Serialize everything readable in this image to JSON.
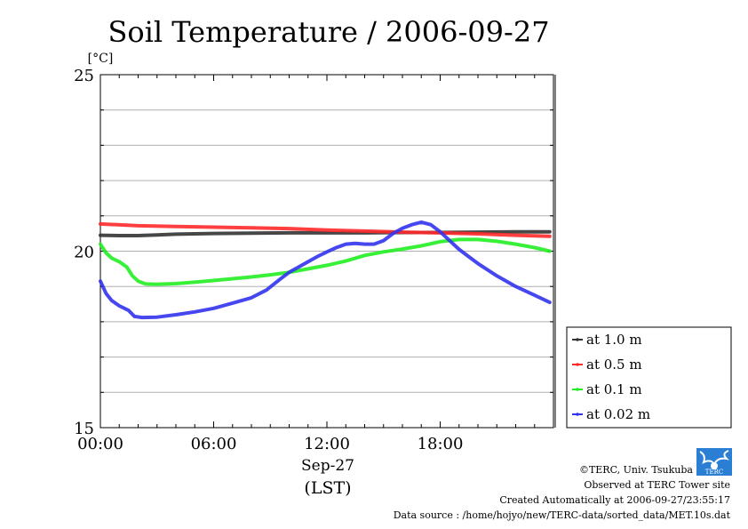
{
  "chart_data": {
    "type": "line",
    "title": "Soil Temperature / 2006-09-27",
    "ylabel": "[°C]",
    "ylim": [
      15,
      25
    ],
    "y_ticks": [
      "25",
      "20",
      "15"
    ],
    "y_tick_values": [
      25,
      20,
      15
    ],
    "xlim": [
      0,
      24
    ],
    "x_ticks": [
      "00:00",
      "06:00",
      "12:00",
      "18:00"
    ],
    "x_tick_values": [
      0,
      6,
      12,
      18
    ],
    "x_date_label": "Sep-27",
    "xlabel": "(LST)",
    "grid": true,
    "legend_position": "right",
    "series": [
      {
        "name": "at 1.0 m",
        "color": "#333333",
        "x": [
          0,
          1,
          2,
          3,
          4,
          6,
          8,
          10,
          12,
          14,
          16,
          18,
          20,
          22,
          23.8
        ],
        "y": [
          20.45,
          20.44,
          20.44,
          20.46,
          20.48,
          20.5,
          20.51,
          20.52,
          20.52,
          20.52,
          20.53,
          20.53,
          20.54,
          20.55,
          20.55
        ]
      },
      {
        "name": "at 0.5 m",
        "color": "#ff2a2a",
        "x": [
          0,
          2,
          4,
          6,
          8,
          10,
          12,
          14,
          16,
          18,
          20,
          22,
          23.8
        ],
        "y": [
          20.77,
          20.72,
          20.7,
          20.68,
          20.66,
          20.64,
          20.6,
          20.57,
          20.54,
          20.52,
          20.49,
          20.45,
          20.42
        ]
      },
      {
        "name": "at 0.1 m",
        "color": "#22ee22",
        "x": [
          0,
          0.3,
          0.6,
          1.0,
          1.4,
          1.7,
          2.0,
          2.4,
          3.0,
          4.0,
          5.0,
          6.0,
          7.0,
          8.0,
          9.0,
          10.0,
          11.0,
          12.0,
          13.0,
          14.0,
          15.0,
          16.0,
          17.0,
          18.0,
          19.0,
          20.0,
          21.0,
          22.0,
          23.0,
          23.8
        ],
        "y": [
          20.2,
          19.95,
          19.8,
          19.7,
          19.55,
          19.3,
          19.15,
          19.07,
          19.06,
          19.08,
          19.12,
          19.17,
          19.22,
          19.27,
          19.33,
          19.4,
          19.5,
          19.6,
          19.72,
          19.88,
          19.98,
          20.06,
          20.15,
          20.27,
          20.33,
          20.33,
          20.28,
          20.2,
          20.1,
          20.0
        ]
      },
      {
        "name": "at 0.02 m",
        "color": "#3333ee",
        "x": [
          0,
          0.3,
          0.6,
          1.0,
          1.5,
          1.8,
          2.2,
          3.0,
          4.0,
          5.0,
          6.0,
          7.0,
          8.0,
          8.8,
          9.5,
          10.0,
          10.5,
          11.0,
          11.5,
          12.0,
          12.5,
          13.0,
          13.5,
          14.0,
          14.5,
          15.0,
          15.5,
          16.0,
          16.5,
          17.0,
          17.5,
          18.0,
          18.5,
          19.0,
          19.5,
          20.0,
          21.0,
          22.0,
          23.0,
          23.8
        ],
        "y": [
          19.15,
          18.8,
          18.6,
          18.45,
          18.32,
          18.15,
          18.12,
          18.13,
          18.2,
          18.28,
          18.38,
          18.53,
          18.68,
          18.9,
          19.2,
          19.4,
          19.55,
          19.7,
          19.85,
          19.98,
          20.1,
          20.2,
          20.22,
          20.2,
          20.2,
          20.3,
          20.5,
          20.65,
          20.75,
          20.82,
          20.75,
          20.55,
          20.3,
          20.05,
          19.85,
          19.65,
          19.3,
          19.0,
          18.75,
          18.55
        ]
      }
    ]
  },
  "footer": {
    "copyright": "©TERC, Univ. Tsukuba",
    "observed": "Observed at TERC Tower site",
    "created": "Created Automatically at 2006-09-27/23:55:17",
    "source": "Data source : /home/hojyo/new/TERC-data/sorted_data/MET.10s.dat",
    "logo_text": "TERC"
  }
}
